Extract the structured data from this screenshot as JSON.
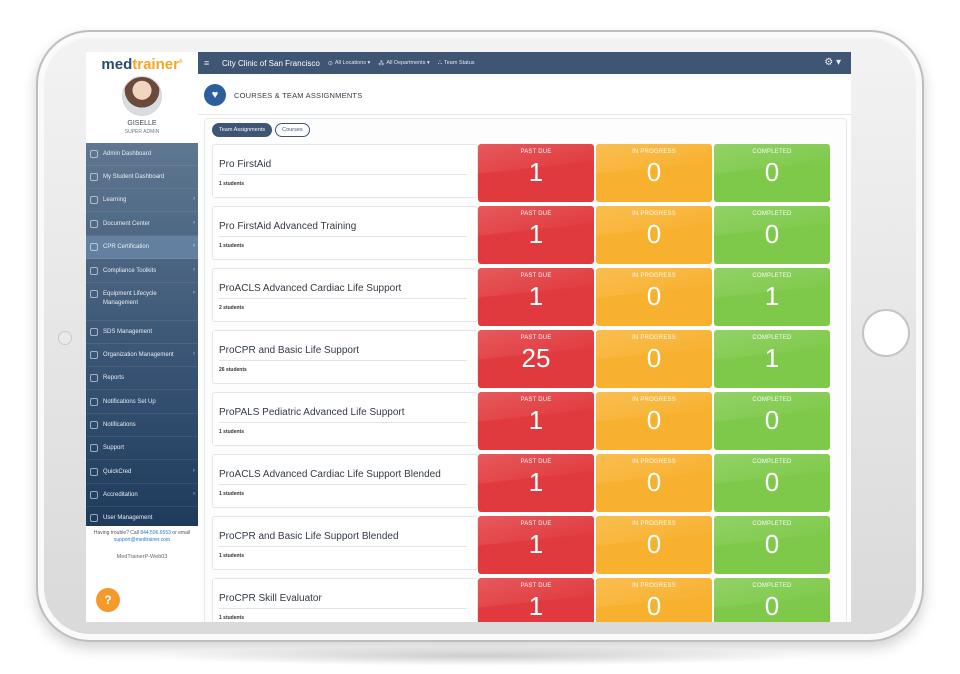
{
  "sidebar": {
    "brand_part1": "med",
    "brand_part2": "trainer",
    "brand_mark": "®",
    "user_name": "GISELLE",
    "user_role": "SUPER ADMIN",
    "items": [
      {
        "label": "Admin Dashboard",
        "icon": "dashboard-icon",
        "chevron": ""
      },
      {
        "label": "My Student Dashboard",
        "icon": "graduation-cap-icon",
        "chevron": ""
      },
      {
        "label": "Learning",
        "icon": "laptop-icon",
        "chevron": "›"
      },
      {
        "label": "Document Center",
        "icon": "documents-icon",
        "chevron": "›"
      },
      {
        "label": "CPR Certification",
        "icon": "heart-icon",
        "chevron": "›"
      },
      {
        "label": "Compliance Toolkits",
        "icon": "tools-icon",
        "chevron": "›"
      },
      {
        "label": "Equipment Lifecycle Management",
        "icon": "equipment-icon",
        "chevron": "›"
      },
      {
        "label": "SDS Management",
        "icon": "hazard-icon",
        "chevron": ""
      },
      {
        "label": "Organization Management",
        "icon": "organization-icon",
        "chevron": "›"
      },
      {
        "label": "Reports",
        "icon": "reports-icon",
        "chevron": ""
      },
      {
        "label": "Notifications Set Up",
        "icon": "notification-setup-icon",
        "chevron": ""
      },
      {
        "label": "Notifications",
        "icon": "bell-icon",
        "chevron": ""
      },
      {
        "label": "Support",
        "icon": "headset-icon",
        "chevron": ""
      },
      {
        "label": "QuickCred",
        "icon": "credential-icon",
        "chevron": "›"
      },
      {
        "label": "Accreditation",
        "icon": "accreditation-icon",
        "chevron": "›"
      },
      {
        "label": "User Management",
        "icon": "users-icon",
        "chevron": ""
      }
    ],
    "help_prefix": "Having trouble? Call ",
    "help_phone": "844.596.6553",
    "help_mid": " or email ",
    "help_email": "support@medtrainer.com",
    "server": "MedTrainerP-Web03",
    "help_button": "?"
  },
  "topbar": {
    "menu_icon": "≡",
    "org": "City Clinic of San Francisco",
    "locations": "All Locations ▾",
    "departments": "All Departments ▾",
    "team_status": "Team Status",
    "gear": "⚙ ▾"
  },
  "main": {
    "title": "COURSES & TEAM ASSIGNMENTS",
    "tabs": [
      {
        "label": "Team Assignments",
        "active": true
      },
      {
        "label": "Courses",
        "active": false
      }
    ],
    "status_labels": {
      "past_due": "PAST DUE",
      "in_progress": "IN PROGRESS",
      "completed": "COMPLETED"
    },
    "courses": [
      {
        "name": "Pro FirstAid",
        "students": "1 students",
        "past_due": "1",
        "in_progress": "0",
        "completed": "0"
      },
      {
        "name": "Pro FirstAid Advanced Training",
        "students": "1 students",
        "past_due": "1",
        "in_progress": "0",
        "completed": "0"
      },
      {
        "name": "ProACLS Advanced Cardiac Life Support",
        "students": "2 students",
        "past_due": "1",
        "in_progress": "0",
        "completed": "1"
      },
      {
        "name": "ProCPR and Basic Life Support",
        "students": "26 students",
        "past_due": "25",
        "in_progress": "0",
        "completed": "1"
      },
      {
        "name": "ProPALS Pediatric Advanced Life Support",
        "students": "1 students",
        "past_due": "1",
        "in_progress": "0",
        "completed": "0"
      },
      {
        "name": "ProACLS Advanced Cardiac Life Support Blended",
        "students": "1 students",
        "past_due": "1",
        "in_progress": "0",
        "completed": "0"
      },
      {
        "name": "ProCPR and Basic Life Support Blended",
        "students": "1 students",
        "past_due": "1",
        "in_progress": "0",
        "completed": "0"
      },
      {
        "name": "ProCPR Skill Evaluator",
        "students": "1 students",
        "past_due": "1",
        "in_progress": "0",
        "completed": "0"
      }
    ]
  },
  "colors": {
    "past_due": "#e13a3e",
    "in_progress": "#f8b12f",
    "completed": "#7ec94a",
    "nav": "#3e5573"
  }
}
